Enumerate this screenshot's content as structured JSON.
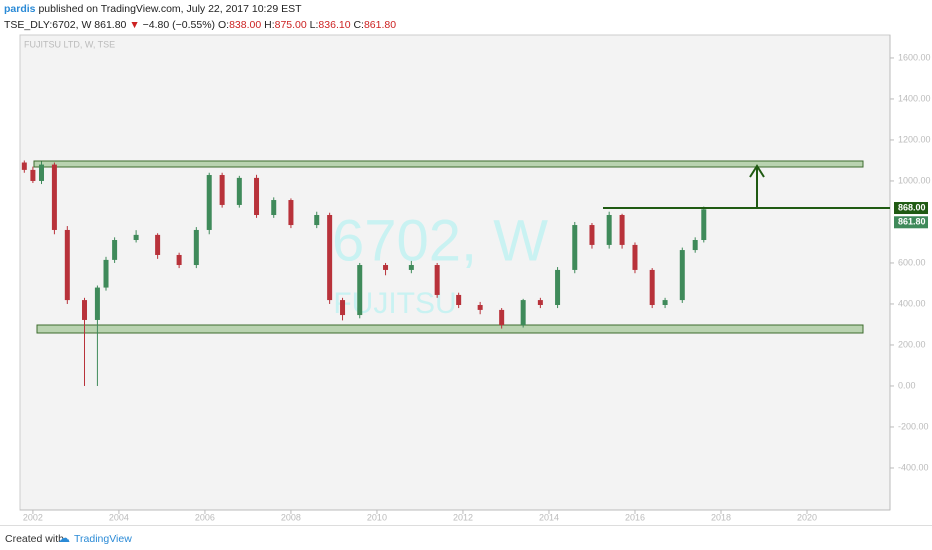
{
  "header": {
    "author": "pardis",
    "published": "published on TradingView.com, July 22, 2017 10:29 EST",
    "symbol": "TSE_DLY:6702, W",
    "last": "861.80",
    "change": "−4.80 (−0.55%)",
    "open_label": "O:",
    "open": "838.00",
    "high_label": "H:",
    "high": "875.00",
    "low_label": "L:",
    "low": "836.10",
    "close_label": "C:",
    "close": "861.80"
  },
  "chart_data": {
    "type": "candlestick",
    "legend": "FUJITSU LTD, W, TSE",
    "watermark": "6702, W",
    "watermark_sub": "FUJITSU",
    "x": [
      2001.8,
      2002.0,
      2002.2,
      2002.5,
      2002.8,
      2003.2,
      2003.5,
      2003.7,
      2003.9,
      2004.4,
      2004.9,
      2005.4,
      2005.8,
      2006.1,
      2006.4,
      2006.8,
      2007.2,
      2007.6,
      2008.0,
      2008.6,
      2008.9,
      2009.2,
      2009.6,
      2010.2,
      2010.8,
      2011.4,
      2011.9,
      2012.4,
      2012.9,
      2013.4,
      2013.8,
      2014.2,
      2014.6,
      2015.0,
      2015.4,
      2015.7,
      2016.0,
      2016.4,
      2016.7,
      2017.1,
      2017.4,
      2017.6
    ],
    "open": [
      1090,
      1054,
      1000,
      1080,
      761,
      419,
      322,
      480,
      615,
      712,
      737,
      639,
      590,
      761,
      1029,
      883,
      1015,
      834,
      907,
      785,
      834,
      419,
      346,
      590,
      566,
      590,
      444,
      395,
      371,
      297,
      419,
      395,
      566,
      785,
      688,
      834,
      688,
      566,
      395,
      419,
      663,
      712
    ],
    "high": [
      1100,
      1070,
      1095,
      1090,
      780,
      430,
      490,
      630,
      725,
      760,
      745,
      650,
      775,
      1040,
      1040,
      1025,
      1030,
      920,
      915,
      850,
      845,
      430,
      600,
      600,
      610,
      600,
      455,
      410,
      380,
      425,
      430,
      580,
      800,
      795,
      850,
      840,
      700,
      575,
      430,
      675,
      725,
      875
    ],
    "low": [
      1040,
      990,
      985,
      740,
      400,
      0,
      0,
      465,
      600,
      700,
      620,
      575,
      575,
      740,
      870,
      870,
      820,
      820,
      770,
      770,
      400,
      320,
      330,
      540,
      550,
      430,
      380,
      350,
      280,
      285,
      380,
      380,
      550,
      670,
      670,
      670,
      550,
      380,
      380,
      405,
      650,
      700
    ],
    "close": [
      1054,
      1000,
      1080,
      761,
      419,
      322,
      480,
      615,
      712,
      737,
      639,
      590,
      761,
      1029,
      883,
      1015,
      834,
      907,
      785,
      834,
      419,
      346,
      590,
      566,
      590,
      444,
      395,
      371,
      297,
      419,
      395,
      566,
      785,
      688,
      834,
      688,
      566,
      395,
      419,
      663,
      712,
      861.8
    ],
    "up_color": "#3f8a5a",
    "down_color": "#b8323a",
    "xlim": [
      2001.7,
      2021.93
    ],
    "xticks": [
      2002,
      2004,
      2006,
      2008,
      2010,
      2012,
      2014,
      2016,
      2018,
      2020
    ],
    "ylim": [
      -605,
      1712
    ],
    "yticks": [
      {
        "value": 1600,
        "label": "1600.00"
      },
      {
        "value": 1400,
        "label": "1400.00"
      },
      {
        "value": 1200,
        "label": "1200.00"
      },
      {
        "value": 1000,
        "label": "1000.00"
      },
      {
        "value": 600,
        "label": "600.00"
      },
      {
        "value": 400,
        "label": "400.00"
      },
      {
        "value": 200,
        "label": "200.00"
      },
      {
        "value": 0,
        "label": "0.00"
      },
      {
        "value": -200,
        "label": "-200.00"
      },
      {
        "value": -400,
        "label": "-400.00"
      }
    ],
    "resistance": {
      "value": 868,
      "label": "868.00"
    },
    "last_price": {
      "value": 861.8,
      "label": "861.80"
    }
  },
  "footer": {
    "created": "Created with",
    "brand": "TradingView"
  }
}
